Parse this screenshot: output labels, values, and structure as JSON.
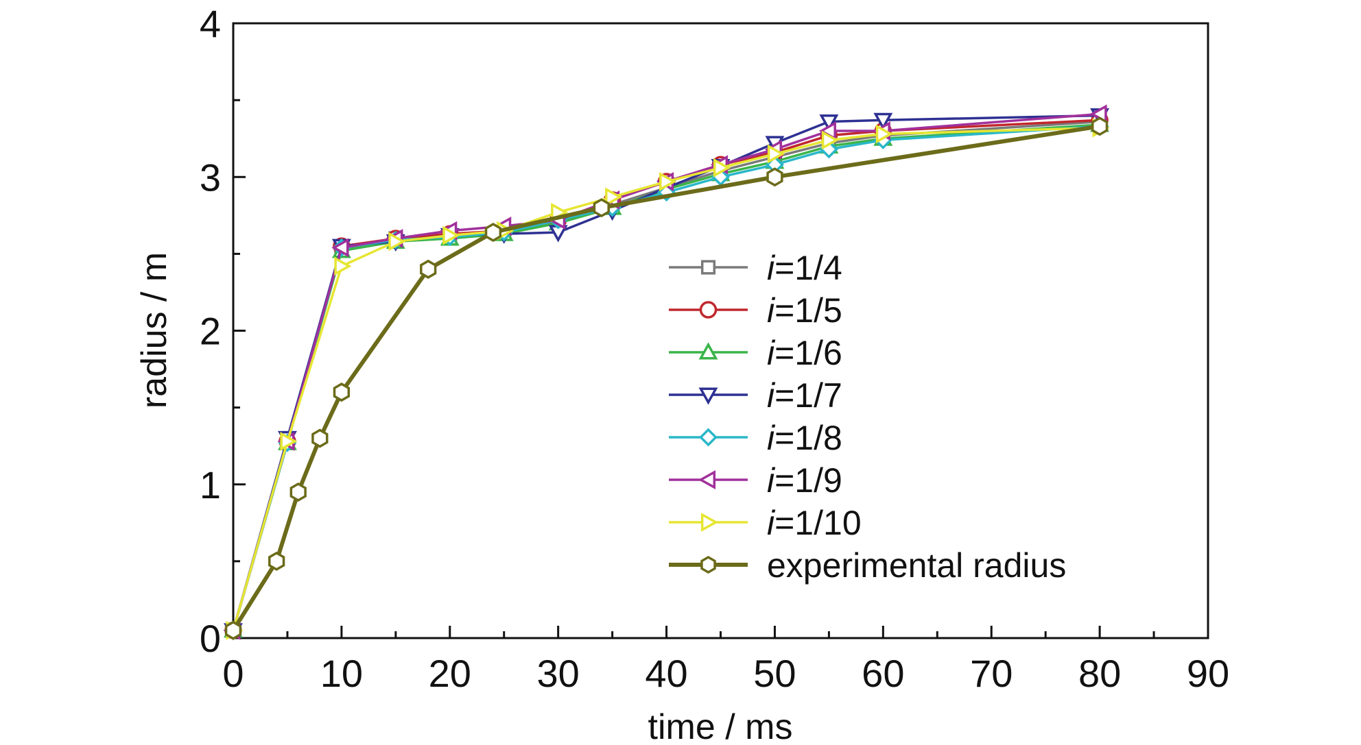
{
  "chart_data": {
    "type": "line",
    "xlabel": "time / ms",
    "ylabel": "radius / m",
    "xlim": [
      0,
      90
    ],
    "ylim": [
      0,
      4
    ],
    "xticks": [
      "0",
      "10",
      "20",
      "30",
      "40",
      "50",
      "60",
      "70",
      "80",
      "90"
    ],
    "yticks": [
      "0",
      "1",
      "2",
      "3",
      "4"
    ],
    "grid": false,
    "legend_position": "center-right",
    "series": [
      {
        "name": "i=1/4",
        "name_italic": "i",
        "name_rest": "=1/4",
        "color": "#7a7a7a",
        "marker": "square",
        "x": [
          0,
          5,
          10,
          15,
          20,
          25,
          30,
          35,
          40,
          45,
          50,
          55,
          60,
          80
        ],
        "y": [
          0.05,
          1.27,
          2.53,
          2.6,
          2.62,
          2.64,
          2.71,
          2.82,
          2.93,
          3.04,
          3.13,
          3.22,
          3.27,
          3.36
        ]
      },
      {
        "name": "i=1/5",
        "name_italic": "i",
        "name_rest": "=1/5",
        "color": "#c0272d",
        "marker": "circle",
        "x": [
          0,
          5,
          10,
          15,
          20,
          25,
          30,
          35,
          40,
          45,
          50,
          55,
          60,
          80
        ],
        "y": [
          0.05,
          1.28,
          2.55,
          2.6,
          2.63,
          2.65,
          2.72,
          2.85,
          2.97,
          3.08,
          3.16,
          3.27,
          3.3,
          3.37
        ]
      },
      {
        "name": "i=1/6",
        "name_italic": "i",
        "name_rest": "=1/6",
        "color": "#3bb449",
        "marker": "triangle-up",
        "x": [
          0,
          5,
          10,
          15,
          20,
          25,
          30,
          35,
          40,
          45,
          50,
          55,
          60,
          80
        ],
        "y": [
          0.05,
          1.27,
          2.52,
          2.58,
          2.6,
          2.63,
          2.7,
          2.8,
          2.92,
          3.02,
          3.1,
          3.2,
          3.25,
          3.34
        ]
      },
      {
        "name": "i=1/7",
        "name_italic": "i",
        "name_rest": "=1/7",
        "color": "#2e3192",
        "marker": "triangle-down",
        "x": [
          0,
          5,
          10,
          15,
          20,
          25,
          30,
          35,
          40,
          45,
          50,
          55,
          60,
          80
        ],
        "y": [
          0.05,
          1.3,
          2.55,
          2.58,
          2.62,
          2.63,
          2.64,
          2.78,
          2.93,
          3.07,
          3.22,
          3.36,
          3.37,
          3.4
        ]
      },
      {
        "name": "i=1/8",
        "name_italic": "i",
        "name_rest": "=1/8",
        "color": "#2ab7c9",
        "marker": "diamond",
        "x": [
          0,
          5,
          10,
          15,
          20,
          25,
          30,
          35,
          40,
          45,
          50,
          55,
          60,
          80
        ],
        "y": [
          0.05,
          1.27,
          2.54,
          2.59,
          2.61,
          2.64,
          2.72,
          2.8,
          2.9,
          3.0,
          3.08,
          3.18,
          3.24,
          3.33
        ]
      },
      {
        "name": "i=1/9",
        "name_italic": "i",
        "name_rest": "=1/9",
        "color": "#a1309b",
        "marker": "triangle-left",
        "x": [
          0,
          5,
          10,
          15,
          20,
          25,
          30,
          35,
          40,
          45,
          50,
          55,
          60,
          80
        ],
        "y": [
          0.05,
          1.28,
          2.54,
          2.6,
          2.65,
          2.68,
          2.72,
          2.85,
          2.97,
          3.08,
          3.18,
          3.3,
          3.3,
          3.41
        ]
      },
      {
        "name": "i=1/10",
        "name_italic": "i",
        "name_rest": "=1/10",
        "color": "#e6e633",
        "marker": "triangle-right",
        "x": [
          0,
          5,
          10,
          15,
          20,
          25,
          30,
          35,
          40,
          45,
          50,
          55,
          60,
          80
        ],
        "y": [
          0.05,
          1.28,
          2.42,
          2.58,
          2.62,
          2.65,
          2.77,
          2.87,
          2.97,
          3.06,
          3.15,
          3.24,
          3.28,
          3.32
        ]
      },
      {
        "name": "experimental radius",
        "color": "#6b6b1a",
        "marker": "hexagon",
        "x": [
          0,
          4,
          6,
          8,
          10,
          18,
          24,
          34,
          50,
          80
        ],
        "y": [
          0.05,
          0.5,
          0.95,
          1.3,
          1.6,
          2.4,
          2.64,
          2.8,
          3.0,
          3.33
        ]
      }
    ]
  }
}
